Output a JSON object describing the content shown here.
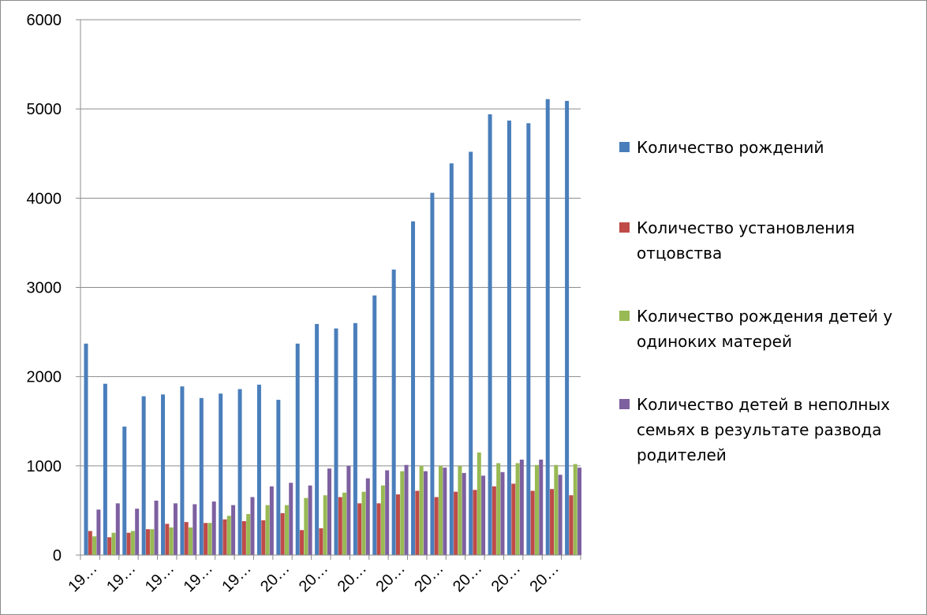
{
  "chart_data": {
    "type": "bar",
    "categories": [
      "19…",
      "19…",
      "19…",
      "19…",
      "19…",
      "19…",
      "19…",
      "19…",
      "19…",
      "19…",
      "20…",
      "20…",
      "20…",
      "20…",
      "20…",
      "20…",
      "20…",
      "20…",
      "20…",
      "20…",
      "20…",
      "20…",
      "20…",
      "20…",
      "20…",
      "20…"
    ],
    "series": [
      {
        "name": "Количество рождений",
        "color": "#4a7ebb",
        "values": [
          2370,
          1920,
          1440,
          1780,
          1800,
          1890,
          1760,
          1810,
          1860,
          1910,
          1740,
          2370,
          2590,
          2540,
          2600,
          2910,
          3200,
          3740,
          4060,
          4390,
          4520,
          4940,
          4870,
          4840,
          5110,
          5090
        ]
      },
      {
        "name": "Количество установления отцовства",
        "color": "#be4b48",
        "values": [
          270,
          200,
          250,
          290,
          350,
          370,
          360,
          400,
          380,
          390,
          470,
          280,
          300,
          650,
          580,
          580,
          680,
          720,
          650,
          710,
          730,
          770,
          800,
          720,
          740,
          670
        ]
      },
      {
        "name": "Количество рождения детей у одиноких матерей",
        "color": "#98b954",
        "values": [
          210,
          250,
          270,
          290,
          310,
          310,
          360,
          440,
          460,
          560,
          560,
          640,
          670,
          700,
          710,
          780,
          940,
          1000,
          1000,
          1000,
          1150,
          1030,
          1030,
          1010,
          1010,
          1020
        ]
      },
      {
        "name": "Количество детей в неполных семьях в результате развода родителей",
        "color": "#7d60a0",
        "values": [
          510,
          580,
          520,
          610,
          580,
          570,
          600,
          560,
          650,
          770,
          810,
          780,
          970,
          1000,
          860,
          950,
          1010,
          940,
          980,
          920,
          890,
          930,
          1070,
          1070,
          900,
          980
        ]
      }
    ],
    "ylim": [
      0,
      6000
    ],
    "yticks": [
      0,
      1000,
      2000,
      3000,
      4000,
      5000,
      6000
    ],
    "grid": true,
    "legend_position": "right"
  }
}
